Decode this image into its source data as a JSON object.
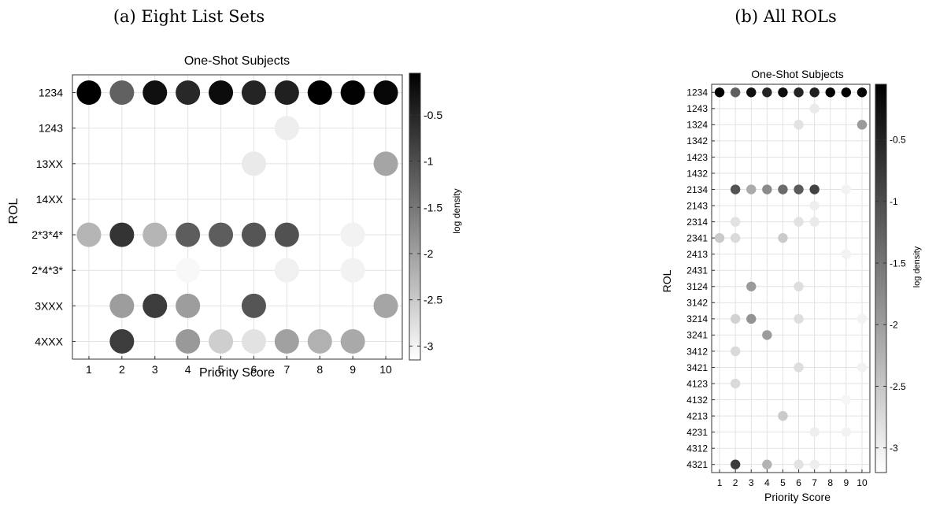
{
  "chart_data": [
    {
      "type": "scatter",
      "caption": "(a) Eight List Sets",
      "title": "One-Shot Subjects",
      "xlabel": "Priority Score",
      "ylabel": "ROL",
      "colorbar_label": "log density",
      "x_ticks": [
        1,
        2,
        3,
        4,
        5,
        6,
        7,
        8,
        9,
        10
      ],
      "y_categories": [
        "1234",
        "1243",
        "13XX",
        "14XX",
        "2*3*4*",
        "2*4*3*",
        "3XXX",
        "4XXX"
      ],
      "color_ticks": [
        -0.5,
        -1,
        -1.5,
        -2,
        -2.5,
        -3
      ],
      "color_tick_labels": [
        "-0.5",
        "-1",
        "-1.5",
        "-2",
        "-2.5",
        "-3"
      ],
      "color_range": [
        -3.15,
        -0.05
      ],
      "grid": true,
      "points": [
        {
          "row": "1234",
          "x": 1,
          "v": -0.05
        },
        {
          "row": "1234",
          "x": 2,
          "v": -1.25
        },
        {
          "row": "1234",
          "x": 3,
          "v": -0.25
        },
        {
          "row": "1234",
          "x": 4,
          "v": -0.55
        },
        {
          "row": "1234",
          "x": 5,
          "v": -0.2
        },
        {
          "row": "1234",
          "x": 6,
          "v": -0.5
        },
        {
          "row": "1234",
          "x": 7,
          "v": -0.45
        },
        {
          "row": "1234",
          "x": 8,
          "v": -0.05
        },
        {
          "row": "1234",
          "x": 9,
          "v": -0.08
        },
        {
          "row": "1234",
          "x": 10,
          "v": -0.12
        },
        {
          "row": "1243",
          "x": 7,
          "v": -3.0
        },
        {
          "row": "13XX",
          "x": 6,
          "v": -2.95
        },
        {
          "row": "13XX",
          "x": 10,
          "v": -2.1
        },
        {
          "row": "2*3*4*",
          "x": 1,
          "v": -2.3
        },
        {
          "row": "2*3*4*",
          "x": 2,
          "v": -0.7
        },
        {
          "row": "2*3*4*",
          "x": 3,
          "v": -2.3
        },
        {
          "row": "2*3*4*",
          "x": 4,
          "v": -1.2
        },
        {
          "row": "2*3*4*",
          "x": 5,
          "v": -1.2
        },
        {
          "row": "2*3*4*",
          "x": 6,
          "v": -1.1
        },
        {
          "row": "2*3*4*",
          "x": 7,
          "v": -1.05
        },
        {
          "row": "2*3*4*",
          "x": 9,
          "v": -3.05
        },
        {
          "row": "2*4*3*",
          "x": 4,
          "v": -3.12
        },
        {
          "row": "2*4*3*",
          "x": 7,
          "v": -3.02
        },
        {
          "row": "2*4*3*",
          "x": 9,
          "v": -3.05
        },
        {
          "row": "3XXX",
          "x": 2,
          "v": -2.0
        },
        {
          "row": "3XXX",
          "x": 3,
          "v": -0.8
        },
        {
          "row": "3XXX",
          "x": 4,
          "v": -2.0
        },
        {
          "row": "3XXX",
          "x": 6,
          "v": -1.1
        },
        {
          "row": "3XXX",
          "x": 10,
          "v": -2.1
        },
        {
          "row": "4XXX",
          "x": 2,
          "v": -0.8
        },
        {
          "row": "4XXX",
          "x": 4,
          "v": -1.95
        },
        {
          "row": "4XXX",
          "x": 5,
          "v": -2.6
        },
        {
          "row": "4XXX",
          "x": 6,
          "v": -2.85
        },
        {
          "row": "4XXX",
          "x": 7,
          "v": -2.05
        },
        {
          "row": "4XXX",
          "x": 8,
          "v": -2.25
        },
        {
          "row": "4XXX",
          "x": 9,
          "v": -2.15
        }
      ]
    },
    {
      "type": "scatter",
      "caption": "(b) All ROLs",
      "title": "One-Shot Subjects",
      "xlabel": "Priority Score",
      "ylabel": "ROL",
      "colorbar_label": "log density",
      "x_ticks": [
        1,
        2,
        3,
        4,
        5,
        6,
        7,
        8,
        9,
        10
      ],
      "y_categories": [
        "1234",
        "1243",
        "1324",
        "1342",
        "1423",
        "1432",
        "2134",
        "2143",
        "2314",
        "2341",
        "2413",
        "2431",
        "3124",
        "3142",
        "3214",
        "3241",
        "3412",
        "3421",
        "4123",
        "4132",
        "4213",
        "4231",
        "4312",
        "4321"
      ],
      "color_ticks": [
        -0.5,
        -1,
        -1.5,
        -2,
        -2.5,
        -3
      ],
      "color_tick_labels": [
        "-0.5",
        "-1",
        "-1.5",
        "-2",
        "-2.5",
        "-3"
      ],
      "color_range": [
        -3.2,
        -0.05
      ],
      "grid": true,
      "points": [
        {
          "row": "1234",
          "x": 1,
          "v": -0.05
        },
        {
          "row": "1234",
          "x": 2,
          "v": -1.25
        },
        {
          "row": "1234",
          "x": 3,
          "v": -0.25
        },
        {
          "row": "1234",
          "x": 4,
          "v": -0.5
        },
        {
          "row": "1234",
          "x": 5,
          "v": -0.2
        },
        {
          "row": "1234",
          "x": 6,
          "v": -0.5
        },
        {
          "row": "1234",
          "x": 7,
          "v": -0.45
        },
        {
          "row": "1234",
          "x": 8,
          "v": -0.05
        },
        {
          "row": "1234",
          "x": 9,
          "v": -0.08
        },
        {
          "row": "1234",
          "x": 10,
          "v": -0.12
        },
        {
          "row": "1243",
          "x": 7,
          "v": -3.0
        },
        {
          "row": "1324",
          "x": 6,
          "v": -2.9
        },
        {
          "row": "1324",
          "x": 10,
          "v": -2.0
        },
        {
          "row": "2134",
          "x": 2,
          "v": -1.1
        },
        {
          "row": "2134",
          "x": 3,
          "v": -2.2
        },
        {
          "row": "2134",
          "x": 4,
          "v": -1.8
        },
        {
          "row": "2134",
          "x": 5,
          "v": -1.4
        },
        {
          "row": "2134",
          "x": 6,
          "v": -1.2
        },
        {
          "row": "2134",
          "x": 7,
          "v": -0.9
        },
        {
          "row": "2134",
          "x": 9,
          "v": -3.1
        },
        {
          "row": "2143",
          "x": 7,
          "v": -3.05
        },
        {
          "row": "2314",
          "x": 2,
          "v": -2.9
        },
        {
          "row": "2314",
          "x": 6,
          "v": -2.9
        },
        {
          "row": "2314",
          "x": 7,
          "v": -3.0
        },
        {
          "row": "2341",
          "x": 1,
          "v": -2.6
        },
        {
          "row": "2341",
          "x": 2,
          "v": -2.8
        },
        {
          "row": "2341",
          "x": 5,
          "v": -2.6
        },
        {
          "row": "2413",
          "x": 9,
          "v": -3.1
        },
        {
          "row": "3124",
          "x": 3,
          "v": -2.0
        },
        {
          "row": "3124",
          "x": 6,
          "v": -2.85
        },
        {
          "row": "3214",
          "x": 2,
          "v": -2.7
        },
        {
          "row": "3214",
          "x": 3,
          "v": -1.9
        },
        {
          "row": "3214",
          "x": 6,
          "v": -2.85
        },
        {
          "row": "3214",
          "x": 10,
          "v": -3.1
        },
        {
          "row": "3241",
          "x": 4,
          "v": -2.0
        },
        {
          "row": "3412",
          "x": 2,
          "v": -2.8
        },
        {
          "row": "3421",
          "x": 6,
          "v": -2.85
        },
        {
          "row": "3421",
          "x": 10,
          "v": -3.1
        },
        {
          "row": "4123",
          "x": 2,
          "v": -2.8
        },
        {
          "row": "4132",
          "x": 9,
          "v": -3.15
        },
        {
          "row": "4213",
          "x": 5,
          "v": -2.6
        },
        {
          "row": "4231",
          "x": 7,
          "v": -3.05
        },
        {
          "row": "4231",
          "x": 9,
          "v": -3.1
        },
        {
          "row": "4321",
          "x": 2,
          "v": -0.8
        },
        {
          "row": "4321",
          "x": 4,
          "v": -2.3
        },
        {
          "row": "4321",
          "x": 6,
          "v": -2.9
        },
        {
          "row": "4321",
          "x": 7,
          "v": -3.05
        }
      ]
    }
  ]
}
